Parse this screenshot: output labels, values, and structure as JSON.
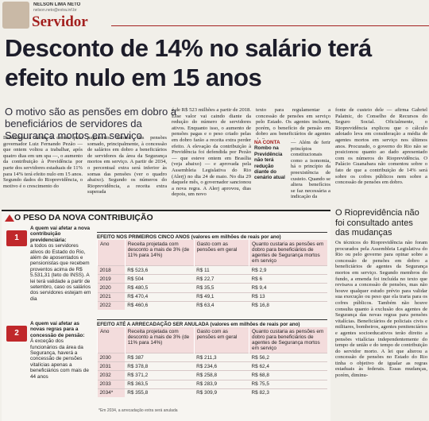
{
  "header": {
    "author": "NELSON LIMA NETO",
    "email": "nelson.neto@extra.inf.br",
    "section": "Servidor"
  },
  "headline": "Desconto de 14% no salário terá efeito nulo em 15 anos",
  "subhead": "O motivo são as pensões em dobro a beneficiários de servidores da Segurança mortos em serviço",
  "columns": [
    "Defendido a unhas e dentes pelo governador Luiz Fernando Pezão — que ontem voltou a trabalhar, após quatro dias em um spa —, o aumento da contribuição à Previdência por parte dos servidores estaduais de 11% para 14% terá efeito nulo em 15 anos. Segundo dados do Rioprevidência, o motivo é o crescimento do",
    "pagamento natural das pensões somado, principalmente, à concessão de salários em dobro a beneficiários de servidores da área da Segurança mortos em serviço. A partir de 2034, o percentual extra será inferior às somas das pensões (ver o quadro abaixo). Segundo os números do Rioprevidência, a receita extra superada",
    "é de R$ 523 milhões a partir de 2018. Esse valor vai caindo diante da redução do número de servidores ativos. Enquanto isso, o aumento de pensões pagas e o peso criado pelas em dobro farão a receita extra perder efeito. A elevação da contribuição à Previdência foi defendida por Pezão — que esteve ontem em Brasília (veja abaixo) — e aprovada pela Assembleia Legislativa do Rio (Alerj) no dia 24 de maio. No dia 29 daquele mês, o governador sancionou a nova regra. A Alerj aprovou, dias depois, um novo",
    "texto para regulamentar a concessão de pensões em serviço pelo Estado. Os agentes incluem, porém, o benefício de pensão em dobro aos beneficiários de agentes da Segurança mortos em serviço.",
    "— Além de ferir princípios constitucionais como a isonomia, há o princípio da preexistência de custeio. Quando se altera benefícios se faz necessária a indicação da",
    "fonte de custeio dele — afirma Gabriel Palatnic, do Conselho de Recursos do Seguro Social. Oficialmente, o Rioprevidência explicou que o cálculo adotado leva em consideração a média de agentes mortos em serviço nos últimos anos. Procurado, o governo do Rio não se posicionou quanto ao dado apresentado com os números do Rioprevidência. O Palácio Guanabara não comentou sobre o fato de que a contribuição de 14% será sobre os cofres públicos nem sobre a concessão de pensões em dobro."
  ],
  "na_conta": {
    "label": "NA CONTA",
    "text": "Rombo na Previdência não terá redução diante do cenário atual"
  },
  "side": {
    "heading": "O Rioprevidência não foi consultado antes das mudanças",
    "text": "Os técnicos do Rioprevidência não foram procurados pela Assembleia Legislativa do Rio ou pelo governo para opinar sobre a concessão de pensões em dobro a beneficiários de agentes da Segurança mortos em serviço. Segundo membros do fundo, a emenda foi incluída no texto que revisava a concessão de pensões, mas não houve qualquer estudo prévio para validar sua execução ou peso que ela traria para os cofres públicos. Também não houve consulta quanto à exclusão dos agentes de Segurança das novas regras para pensões vitalícias. Beneficiários de policiais civis e militares, bombeiros, agentes penitenciários e agentes socioeducativos terão direito a pensões vitalícias independentemente do tempo de união e do tempo de contribuição do servidor morto. A lei que alterou a concessão de pensões no Estado do Rio tinha o objetivo de igualar as regras estaduais às federais. Essas mudanças, porém, diminu-"
  },
  "infographic": {
    "title": "O PESO DA NOVA CONTRIBUIÇÃO",
    "notes": [
      {
        "title": "A quem vai afetar a nova contribuição previdenciária:",
        "text": "a todos os servidores ativos do Estado do Rio, além de aposentados e pensionistas que recebem proventos acima de R$ 5.531,31 (teto do INSS). A lei terá validade a partir de setembro, caso os salários dos servidores estejam em dia"
      },
      {
        "title": "A quem vai afetar as novas regras para a concessão de pensão:",
        "text": "À exceção dos funcionários da área da Segurança, haverá a concessão de pensões vitalícias apenas a beneficiários com mais de 44 anos"
      }
    ],
    "columns": [
      "Ano",
      "Receita projetada com desconto a mais de 3% (de 11% para 14%)",
      "Gasto com as pensões em geral",
      "Quanto custaria as pensões em dobro para beneficiários de agentes de Segurança mortos em serviço"
    ],
    "tables": [
      {
        "title": "EFEITO NOS PRIMEIROS CINCO ANOS (valores em milhões de reais por ano)",
        "rows": [
          [
            "2018",
            "R$ 523,6",
            "R$ 11",
            "R$ 2,9"
          ],
          [
            "2019",
            "R$ 504",
            "R$ 22,7",
            "R$ 6"
          ],
          [
            "2020",
            "R$ 480,5",
            "R$ 35,5",
            "R$ 9,4"
          ],
          [
            "2021",
            "R$ 470,4",
            "R$ 49,1",
            "R$ 13"
          ],
          [
            "2022",
            "R$ 460,6",
            "R$ 63,4",
            "R$ 16,8"
          ]
        ]
      },
      {
        "title": "EFEITO ATÉ A ARRECADAÇÃO SER ANULADA (valores em milhões de reais por ano)",
        "rows": [
          [
            "2030",
            "R$ 387",
            "R$ 211,3",
            "R$ 56,2"
          ],
          [
            "2031",
            "R$ 378,8",
            "R$ 234,6",
            "R$ 62,4"
          ],
          [
            "2032",
            "R$ 371,2",
            "R$ 258,8",
            "R$ 68,8"
          ],
          [
            "2033",
            "R$ 363,5",
            "R$ 283,9",
            "R$ 75,5"
          ],
          [
            "2034*",
            "R$ 355,8",
            "R$ 309,9",
            "R$ 82,3"
          ]
        ]
      }
    ],
    "footnote": "*Em 2034, a arrecadação extra será anulada"
  }
}
